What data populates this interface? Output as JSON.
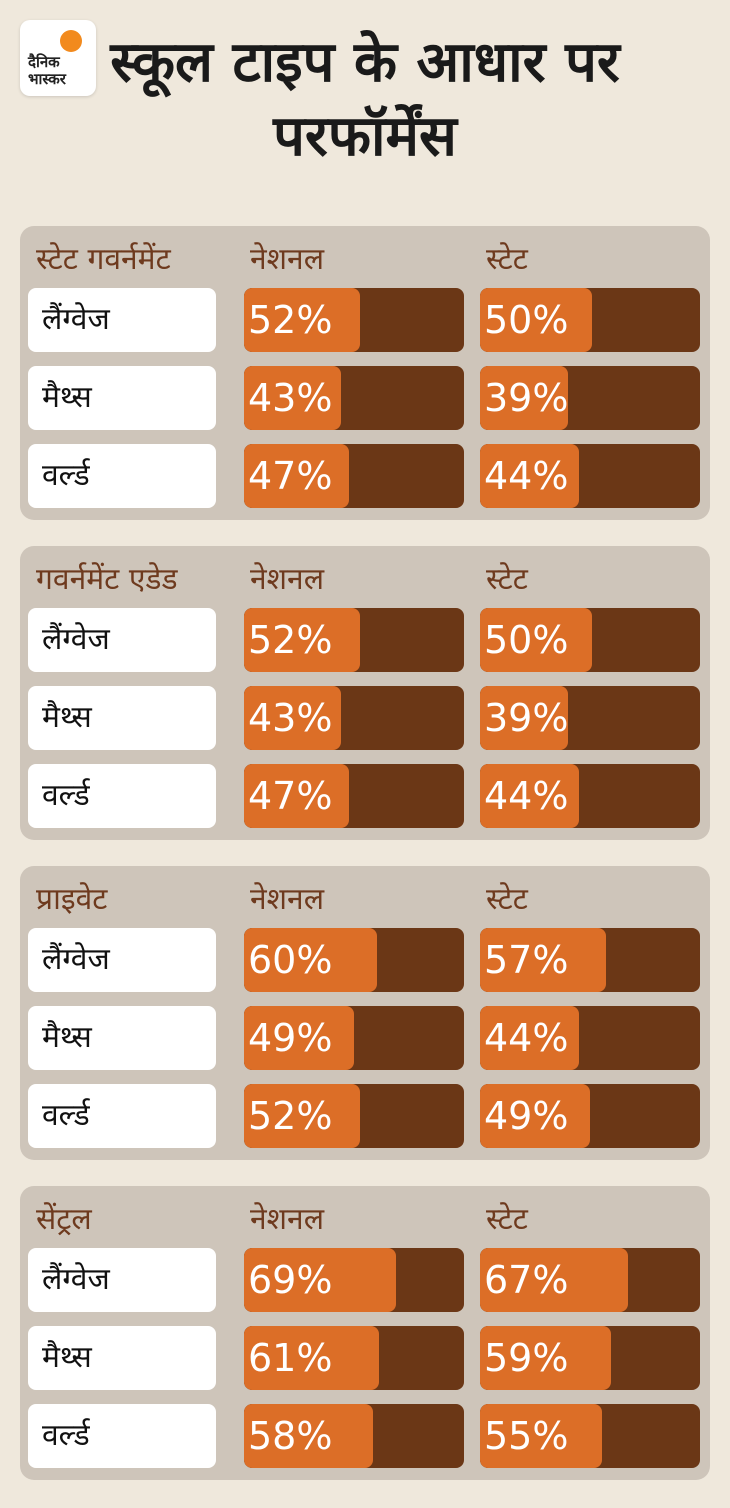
{
  "brand": {
    "logo_text": "दैनिक भास्कर",
    "icon": "sun-icon",
    "color": "#f28a1d"
  },
  "title": "स्कूल टाइप के आधार पर परफॉर्मेंस",
  "colors": {
    "bar_bg": "#6b3716",
    "bar_fill": "#dc6e27",
    "panel": "#cec5ba",
    "header_text": "#6e3a1e"
  },
  "chart_data": [
    {
      "type": "bar",
      "group": "स्टेट गवर्नमेंट",
      "categories": [
        "लैंग्वेज",
        "मैथ्स",
        "वर्ल्ड"
      ],
      "series": [
        {
          "name": "नेशनल",
          "values": [
            52,
            43,
            47
          ]
        },
        {
          "name": "स्टेट",
          "values": [
            50,
            39,
            44
          ]
        }
      ],
      "unit": "%",
      "ylim": [
        0,
        100
      ]
    },
    {
      "type": "bar",
      "group": "गवर्नमेंट एडेड",
      "categories": [
        "लैंग्वेज",
        "मैथ्स",
        "वर्ल्ड"
      ],
      "series": [
        {
          "name": "नेशनल",
          "values": [
            52,
            43,
            47
          ]
        },
        {
          "name": "स्टेट",
          "values": [
            50,
            39,
            44
          ]
        }
      ],
      "unit": "%",
      "ylim": [
        0,
        100
      ]
    },
    {
      "type": "bar",
      "group": "प्राइवेट",
      "categories": [
        "लैंग्वेज",
        "मैथ्स",
        "वर्ल्ड"
      ],
      "series": [
        {
          "name": "नेशनल",
          "values": [
            60,
            49,
            52
          ]
        },
        {
          "name": "स्टेट",
          "values": [
            57,
            44,
            49
          ]
        }
      ],
      "unit": "%",
      "ylim": [
        0,
        100
      ]
    },
    {
      "type": "bar",
      "group": "सेंट्रल",
      "categories": [
        "लैंग्वेज",
        "मैथ्स",
        "वर्ल्ड"
      ],
      "series": [
        {
          "name": "नेशनल",
          "values": [
            69,
            61,
            58
          ]
        },
        {
          "name": "स्टेट",
          "values": [
            67,
            59,
            55
          ]
        }
      ],
      "unit": "%",
      "ylim": [
        0,
        100
      ]
    }
  ]
}
